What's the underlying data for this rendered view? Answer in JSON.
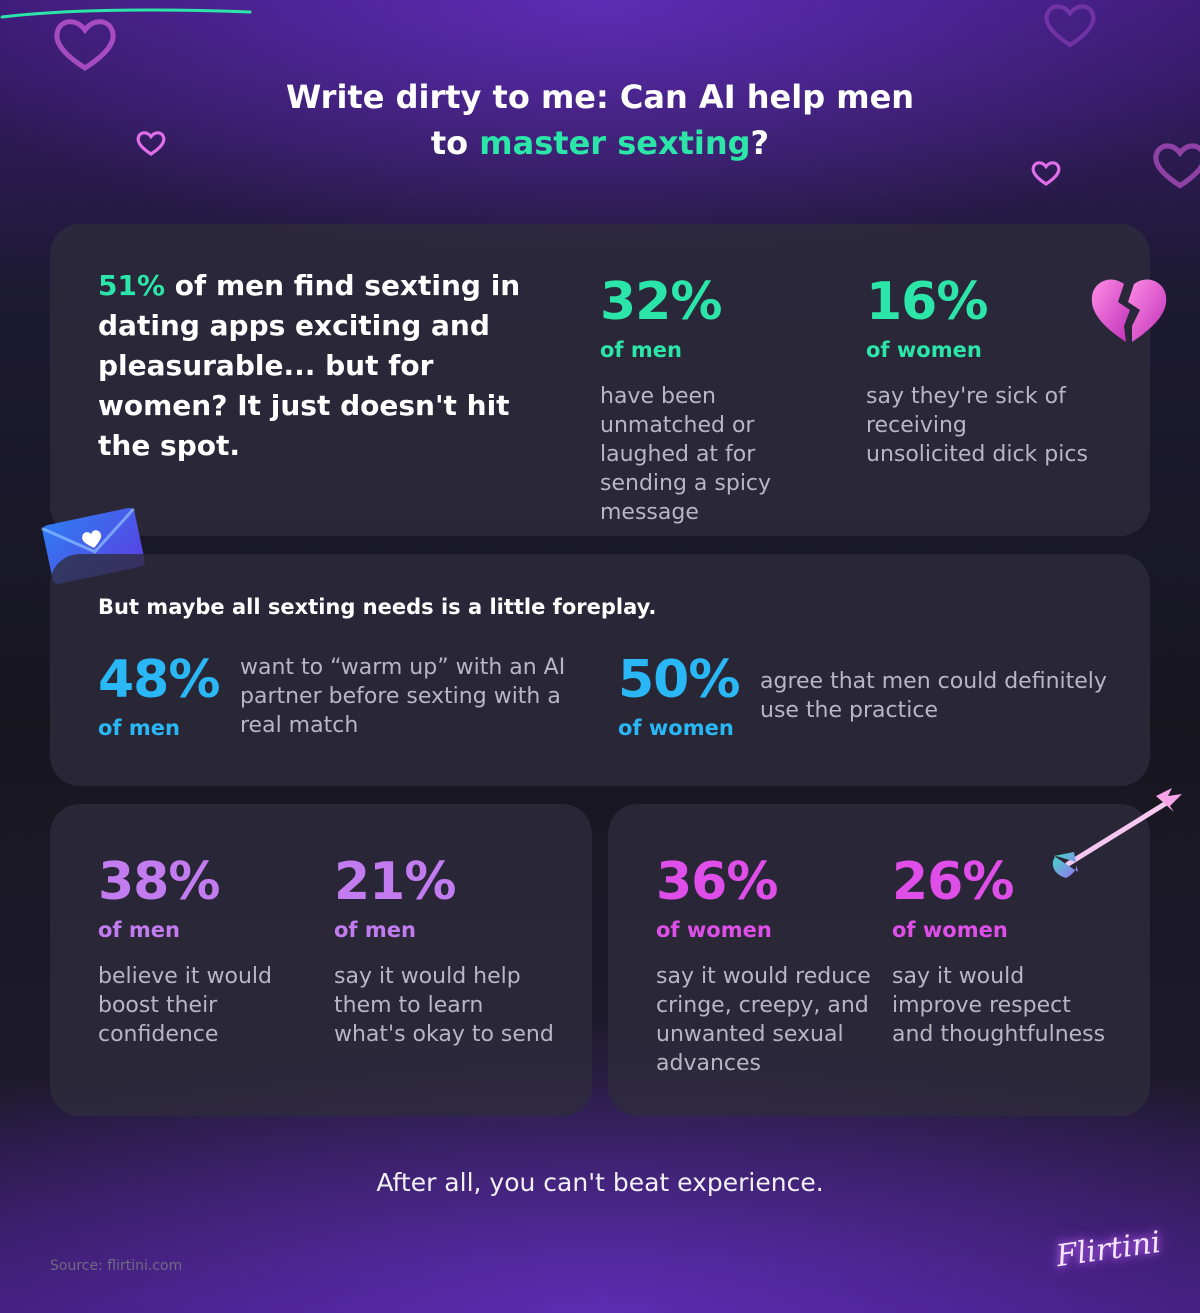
{
  "title": {
    "line1": "Write dirty to me: Can AI help men",
    "line2_prefix": "to ",
    "line2_highlight": "master sexting",
    "line2_suffix": "?"
  },
  "intro": {
    "percent": "51%",
    "text": " of men find sexting in dating apps exciting and pleasurable... but for women? It just doesn't hit the spot."
  },
  "top_stats": [
    {
      "value": "32%",
      "group": "of men",
      "desc": "have been unmatched or laughed at for sending a spicy message"
    },
    {
      "value": "16%",
      "group": "of women",
      "desc": "say they're sick of receiving unsolicited dick pics"
    }
  ],
  "middle": {
    "heading": "But maybe all sexting needs is a little foreplay.",
    "stats": [
      {
        "value": "48%",
        "group": "of men",
        "desc": "want to “warm up” with an AI partner before sexting with a real match"
      },
      {
        "value": "50%",
        "group": "of women",
        "desc": "agree that men could definitely use the practice"
      }
    ]
  },
  "bottom_left": [
    {
      "value": "38%",
      "group": "of men",
      "desc": "believe it would boost their confidence"
    },
    {
      "value": "21%",
      "group": "of men",
      "desc": "say it would help them to learn what's okay to send"
    }
  ],
  "bottom_right": [
    {
      "value": "36%",
      "group": "of women",
      "desc": "say it would reduce cringe, creepy, and unwanted sexual advances"
    },
    {
      "value": "26%",
      "group": "of women",
      "desc": "say it would improve respect and thoughtfulness"
    }
  ],
  "closing": "After all, you can't beat experience.",
  "source": "Source: flirtini.com",
  "brand": "Flirtini",
  "colors": {
    "green": "#2be6a8",
    "blue": "#29b8f5",
    "purple": "#c37bf0",
    "magenta": "#e04ee9"
  }
}
